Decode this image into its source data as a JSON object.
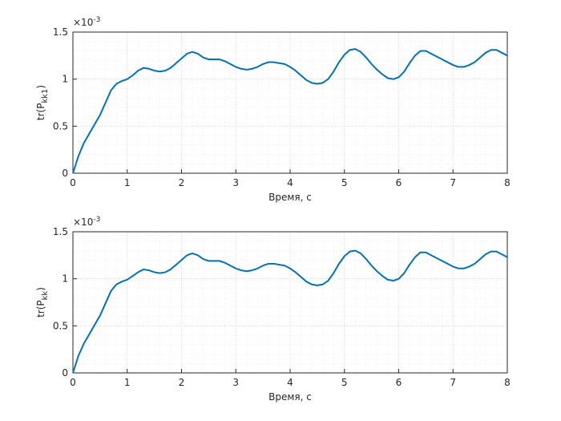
{
  "chart_data": [
    {
      "type": "line",
      "xlabel": "Время, с",
      "ylabel": {
        "text": "tr(P",
        "sub": "kk1",
        "close": ")"
      },
      "y_multiplier": {
        "base": "×10",
        "power": "-3"
      },
      "xlim": [
        0,
        8
      ],
      "xticks": [
        0,
        1,
        2,
        3,
        4,
        5,
        6,
        7,
        8
      ],
      "ylim": [
        0,
        1.5
      ],
      "yticks": [
        0,
        0.5,
        1,
        1.5
      ],
      "grid": true,
      "minor_grid": true,
      "x": [
        0,
        0.1,
        0.2,
        0.3,
        0.4,
        0.5,
        0.6,
        0.7,
        0.8,
        0.9,
        1,
        1.1,
        1.2,
        1.3,
        1.4,
        1.5,
        1.6,
        1.7,
        1.8,
        1.9,
        2,
        2.1,
        2.2,
        2.3,
        2.4,
        2.5,
        2.6,
        2.7,
        2.8,
        2.9,
        3,
        3.1,
        3.2,
        3.3,
        3.4,
        3.5,
        3.6,
        3.7,
        3.8,
        3.9,
        4,
        4.1,
        4.2,
        4.3,
        4.4,
        4.5,
        4.6,
        4.7,
        4.8,
        4.9,
        5,
        5.1,
        5.2,
        5.3,
        5.4,
        5.5,
        5.6,
        5.7,
        5.8,
        5.9,
        6,
        6.1,
        6.2,
        6.3,
        6.4,
        6.5,
        6.6,
        6.7,
        6.8,
        6.9,
        7,
        7.1,
        7.2,
        7.3,
        7.4,
        7.5,
        7.6,
        7.7,
        7.8,
        7.9,
        8
      ],
      "series": [
        {
          "color": "#0072bd",
          "values": [
            0,
            0.18,
            0.32,
            0.42,
            0.52,
            0.62,
            0.75,
            0.88,
            0.95,
            0.98,
            1.0,
            1.04,
            1.09,
            1.12,
            1.11,
            1.09,
            1.08,
            1.09,
            1.12,
            1.17,
            1.22,
            1.27,
            1.29,
            1.27,
            1.23,
            1.21,
            1.21,
            1.21,
            1.19,
            1.16,
            1.13,
            1.11,
            1.1,
            1.11,
            1.13,
            1.16,
            1.18,
            1.18,
            1.17,
            1.16,
            1.13,
            1.09,
            1.04,
            0.99,
            0.96,
            0.95,
            0.96,
            1.0,
            1.08,
            1.18,
            1.26,
            1.31,
            1.32,
            1.29,
            1.23,
            1.16,
            1.1,
            1.05,
            1.01,
            1.0,
            1.02,
            1.08,
            1.17,
            1.25,
            1.3,
            1.3,
            1.27,
            1.24,
            1.21,
            1.18,
            1.15,
            1.13,
            1.13,
            1.15,
            1.18,
            1.23,
            1.28,
            1.31,
            1.31,
            1.28,
            1.25
          ]
        }
      ]
    },
    {
      "type": "line",
      "xlabel": "Время, с",
      "ylabel": {
        "text": "tr(P",
        "sub": "kk",
        "close": ")"
      },
      "y_multiplier": {
        "base": "×10",
        "power": "-3"
      },
      "xlim": [
        0,
        8
      ],
      "xticks": [
        0,
        1,
        2,
        3,
        4,
        5,
        6,
        7,
        8
      ],
      "ylim": [
        0,
        1.5
      ],
      "yticks": [
        0,
        0.5,
        1,
        1.5
      ],
      "grid": true,
      "minor_grid": true,
      "x": [
        0,
        0.1,
        0.2,
        0.3,
        0.4,
        0.5,
        0.6,
        0.7,
        0.8,
        0.9,
        1,
        1.1,
        1.2,
        1.3,
        1.4,
        1.5,
        1.6,
        1.7,
        1.8,
        1.9,
        2,
        2.1,
        2.2,
        2.3,
        2.4,
        2.5,
        2.6,
        2.7,
        2.8,
        2.9,
        3,
        3.1,
        3.2,
        3.3,
        3.4,
        3.5,
        3.6,
        3.7,
        3.8,
        3.9,
        4,
        4.1,
        4.2,
        4.3,
        4.4,
        4.5,
        4.6,
        4.7,
        4.8,
        4.9,
        5,
        5.1,
        5.2,
        5.3,
        5.4,
        5.5,
        5.6,
        5.7,
        5.8,
        5.9,
        6,
        6.1,
        6.2,
        6.3,
        6.4,
        6.5,
        6.6,
        6.7,
        6.8,
        6.9,
        7,
        7.1,
        7.2,
        7.3,
        7.4,
        7.5,
        7.6,
        7.7,
        7.8,
        7.9,
        8
      ],
      "series": [
        {
          "color": "#0072bd",
          "values": [
            0,
            0.18,
            0.31,
            0.41,
            0.51,
            0.61,
            0.74,
            0.87,
            0.94,
            0.97,
            0.99,
            1.03,
            1.07,
            1.1,
            1.09,
            1.07,
            1.06,
            1.07,
            1.1,
            1.15,
            1.2,
            1.25,
            1.27,
            1.25,
            1.21,
            1.19,
            1.19,
            1.19,
            1.17,
            1.14,
            1.11,
            1.09,
            1.08,
            1.09,
            1.11,
            1.14,
            1.16,
            1.16,
            1.15,
            1.14,
            1.11,
            1.07,
            1.02,
            0.97,
            0.94,
            0.93,
            0.94,
            0.98,
            1.06,
            1.16,
            1.24,
            1.29,
            1.3,
            1.27,
            1.21,
            1.14,
            1.08,
            1.03,
            0.99,
            0.98,
            1.0,
            1.06,
            1.15,
            1.23,
            1.28,
            1.28,
            1.25,
            1.22,
            1.19,
            1.16,
            1.13,
            1.11,
            1.11,
            1.13,
            1.16,
            1.21,
            1.26,
            1.29,
            1.29,
            1.26,
            1.23
          ]
        }
      ]
    }
  ]
}
